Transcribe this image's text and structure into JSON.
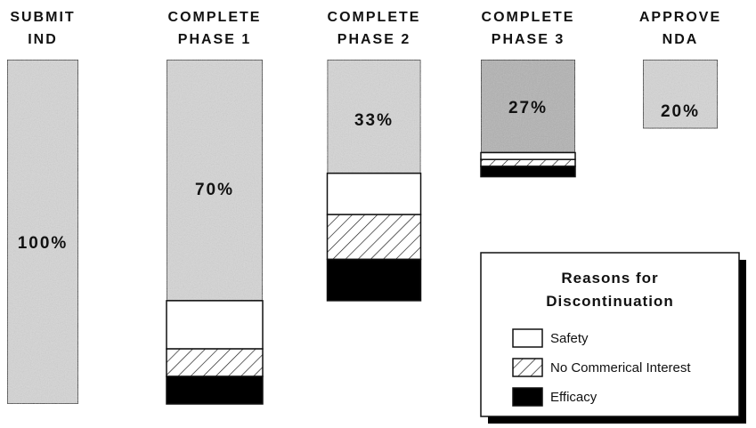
{
  "chart_data": {
    "type": "bar",
    "subtype": "stacked",
    "categories": [
      {
        "line1": "SUBMIT",
        "line2": "IND"
      },
      {
        "line1": "COMPLETE",
        "line2": "PHASE  1"
      },
      {
        "line1": "COMPLETE",
        "line2": "PHASE  2"
      },
      {
        "line1": "COMPLETE",
        "line2": "PHASE  3"
      },
      {
        "line1": "APPROVE",
        "line2": "NDA"
      }
    ],
    "values": [
      100,
      70,
      33,
      27,
      20
    ],
    "value_labels": [
      "100%",
      "70%",
      "33%",
      "27%",
      "20%"
    ],
    "discontinuation": [
      {
        "safety": 0,
        "no_commercial_interest": 0,
        "efficacy": 0
      },
      {
        "safety": 14,
        "no_commercial_interest": 8,
        "efficacy": 8
      },
      {
        "safety": 12,
        "no_commercial_interest": 13,
        "efficacy": 12
      },
      {
        "safety": 2,
        "no_commercial_interest": 2,
        "efficacy": 3
      },
      {
        "safety": 0,
        "no_commercial_interest": 0,
        "efficacy": 0
      }
    ],
    "legend": {
      "title_line1": "Reasons for",
      "title_line2": "Discontinuation",
      "placement": "bottom-right",
      "items": [
        {
          "key": "safety",
          "label": "Safety"
        },
        {
          "key": "no_commercial_interest",
          "label": "No Commerical Interest"
        },
        {
          "key": "efficacy",
          "label": "Efficacy"
        }
      ]
    },
    "colors": {
      "continuing": "#d6d6d6",
      "phase3_continuing": "#b2b2b2",
      "safety": "#ffffff",
      "efficacy": "#000000",
      "outline": "#111111"
    }
  }
}
